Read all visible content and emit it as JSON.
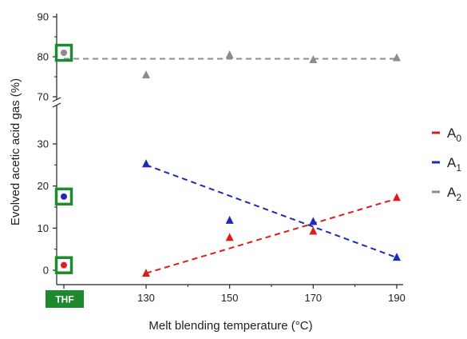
{
  "chart_data": {
    "type": "scatter",
    "xlabel": "Melt blending temperature (°C)",
    "ylabel": "Evolved acetic acid gas (%)",
    "x_categories": [
      "THF",
      "130",
      "150",
      "170",
      "190"
    ],
    "y_axis_break": [
      30,
      70
    ],
    "y_ticks_lower": [
      "0",
      "10",
      "20",
      "30"
    ],
    "y_ticks_upper": [
      "70",
      "80",
      "90"
    ],
    "legend_position": "right",
    "thf_label": "THF",
    "series": [
      {
        "name": "A0",
        "name_base": "A",
        "name_sub": "0",
        "color": "#dd1c1c",
        "thf_value": 1.2,
        "points": [
          {
            "x": 130,
            "y": -0.7
          },
          {
            "x": 150,
            "y": 7.8
          },
          {
            "x": 170,
            "y": 9.3
          },
          {
            "x": 190,
            "y": 17.3
          }
        ],
        "trend": [
          {
            "x": 130,
            "y": -0.7
          },
          {
            "x": 190,
            "y": 17.0
          }
        ]
      },
      {
        "name": "A1",
        "name_base": "A",
        "name_sub": "1",
        "color": "#1f2ab3",
        "thf_value": 17.5,
        "points": [
          {
            "x": 130,
            "y": 25.3
          },
          {
            "x": 150,
            "y": 11.9
          },
          {
            "x": 170,
            "y": 11.6
          },
          {
            "x": 190,
            "y": 3.1
          }
        ],
        "trend": [
          {
            "x": 130,
            "y": 25.0
          },
          {
            "x": 190,
            "y": 3.0
          }
        ]
      },
      {
        "name": "A2",
        "name_base": "A",
        "name_sub": "2",
        "color": "#8c8c8c",
        "thf_value": 81.0,
        "points": [
          {
            "x": 130,
            "y": 75.5
          },
          {
            "x": 150,
            "y": 80.5
          },
          {
            "x": 170,
            "y": 79.3
          },
          {
            "x": 190,
            "y": 79.8
          }
        ],
        "trend": [
          {
            "x": 80,
            "y": 79.5
          },
          {
            "x": 190,
            "y": 79.5
          }
        ]
      }
    ],
    "highlight_color": "#1e8a2e"
  }
}
